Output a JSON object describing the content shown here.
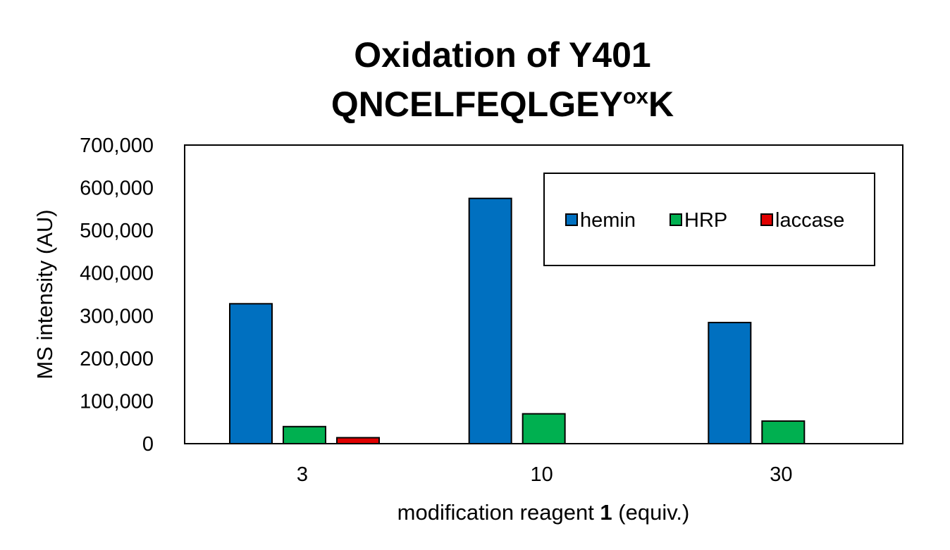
{
  "chart_data": {
    "type": "bar",
    "title": "Oxidation of Y401",
    "subtitle": {
      "main": "QNCELFEQLGEY",
      "superscript": "ox",
      "suffix": "K"
    },
    "xlabel": {
      "before": "modification reagent ",
      "bold": "1",
      "after": " (equiv.)"
    },
    "ylabel": "MS intensity  (AU)",
    "categories": [
      "3",
      "10",
      "30"
    ],
    "series": [
      {
        "name": "hemin",
        "color": "#0070C0",
        "values": [
          328000,
          575000,
          284000
        ]
      },
      {
        "name": "HRP",
        "color": "#00B050",
        "values": [
          40000,
          70000,
          53000
        ]
      },
      {
        "name": "laccase",
        "color": "#E00000",
        "values": [
          14000,
          0,
          0
        ]
      }
    ],
    "ylim": [
      0,
      700000
    ],
    "yticks": [
      "0",
      "100,000",
      "200,000",
      "300,000",
      "400,000",
      "500,000",
      "600,000",
      "700,000"
    ],
    "grid": false,
    "legend_position": "top-right"
  }
}
